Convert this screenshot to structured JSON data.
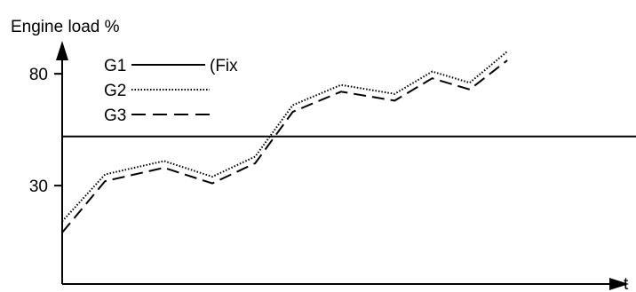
{
  "chart_data": {
    "type": "line",
    "title": "",
    "ylabel": "Engine load %",
    "xlabel": "t",
    "yticks": [
      30,
      80
    ],
    "ylim": [
      -14,
      113
    ],
    "xlim": [
      0,
      10.7
    ],
    "legend_position": "top-left",
    "series": [
      {
        "name": "G1",
        "legend_label": "G1",
        "legend_suffix": "(Fix",
        "style": "solid",
        "x": [
          0,
          10.7
        ],
        "y": [
          52,
          52
        ]
      },
      {
        "name": "G2",
        "legend_label": "G2",
        "legend_suffix": "",
        "style": "dotted",
        "x": [
          0,
          0.8,
          1.9,
          2.8,
          3.6,
          4.3,
          5.2,
          6.2,
          6.9,
          7.6,
          8.3
        ],
        "y": [
          14,
          35,
          41,
          34,
          43,
          66,
          75,
          71,
          81,
          76,
          90
        ]
      },
      {
        "name": "G3",
        "legend_label": "G3",
        "legend_suffix": "",
        "style": "dashed",
        "x": [
          0,
          0.8,
          1.9,
          2.8,
          3.6,
          4.3,
          5.2,
          6.2,
          6.9,
          7.6,
          8.3
        ],
        "y": [
          9,
          32,
          38,
          31,
          40,
          63,
          72,
          68,
          78,
          73,
          86
        ]
      }
    ]
  }
}
